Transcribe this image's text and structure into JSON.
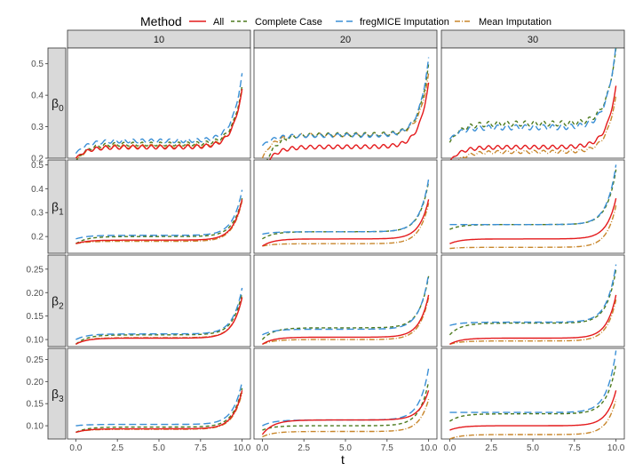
{
  "legend": {
    "title": "Method",
    "items": [
      {
        "label": "All",
        "color": "#e41a1c",
        "dash": "solid"
      },
      {
        "label": "Complete Case",
        "color": "#4d7a1e",
        "dash": "dashed"
      },
      {
        "label": "fregMICE Imputation",
        "color": "#3a8fd6",
        "dash": "longdash"
      },
      {
        "label": "Mean Imputation",
        "color": "#c8862b",
        "dash": "dotdash"
      }
    ]
  },
  "chart_data": {
    "type": "line",
    "xlabel": "t",
    "ylabel": "",
    "x_ticks": [
      0.0,
      2.5,
      5.0,
      7.5,
      10.0
    ],
    "x_tick_labels": [
      "0.0",
      "2.5",
      "5.0",
      "7.5",
      "10.0"
    ],
    "xlim": [
      -0.5,
      10.5
    ],
    "columns": [
      "10",
      "20",
      "30"
    ],
    "rows": [
      {
        "label": "β0",
        "sym": "β",
        "sub": "0",
        "ylim": [
          0.2,
          0.55
        ],
        "ticks": [
          0.2,
          0.3,
          0.4,
          0.5
        ],
        "tick_labels": [
          "0.2",
          "0.3",
          "0.4",
          "0.5"
        ]
      },
      {
        "label": "β1",
        "sym": "β",
        "sub": "1",
        "ylim": [
          0.13,
          0.52
        ],
        "ticks": [
          0.2,
          0.3,
          0.4,
          0.5
        ],
        "tick_labels": [
          "0.2",
          "0.3",
          "0.4",
          "0.5"
        ]
      },
      {
        "label": "β2",
        "sym": "β",
        "sub": "2",
        "ylim": [
          0.085,
          0.28
        ],
        "ticks": [
          0.1,
          0.15,
          0.2,
          0.25
        ],
        "tick_labels": [
          "0.10",
          "0.15",
          "0.20",
          "0.25"
        ]
      },
      {
        "label": "β3",
        "sym": "β",
        "sub": "3",
        "ylim": [
          0.07,
          0.275
        ],
        "ticks": [
          0.1,
          0.15,
          0.2,
          0.25
        ],
        "tick_labels": [
          "0.10",
          "0.15",
          "0.20",
          "0.25"
        ]
      }
    ],
    "panels": [
      [
        {
          "All": [
            0.235,
            0.2,
            0.42,
            0.006
          ],
          "Complete Case": [
            0.245,
            0.19,
            0.43,
            0.006
          ],
          "fregMICE Imputation": [
            0.255,
            0.215,
            0.47,
            0.006
          ],
          "Mean Imputation": [
            0.238,
            0.19,
            0.42,
            0.006
          ]
        },
        {
          "All": [
            0.236,
            0.16,
            0.44,
            0.006
          ],
          "Complete Case": [
            0.275,
            0.15,
            0.5,
            0.006
          ],
          "fregMICE Imputation": [
            0.272,
            0.24,
            0.52,
            0.006
          ],
          "Mean Imputation": [
            0.274,
            0.2,
            0.47,
            0.006
          ]
        },
        {
          "All": [
            0.235,
            0.19,
            0.43,
            0.006
          ],
          "Complete Case": [
            0.31,
            0.25,
            0.55,
            0.008
          ],
          "fregMICE Imputation": [
            0.298,
            0.26,
            0.56,
            0.008
          ],
          "Mean Imputation": [
            0.22,
            0.16,
            0.4,
            0.005
          ]
        }
      ],
      [
        {
          "All": [
            0.185,
            0.17,
            0.355,
            0
          ],
          "Complete Case": [
            0.2,
            0.17,
            0.36,
            0
          ],
          "fregMICE Imputation": [
            0.205,
            0.19,
            0.395,
            0
          ],
          "Mean Imputation": [
            0.18,
            0.17,
            0.35,
            0
          ]
        },
        {
          "All": [
            0.19,
            0.16,
            0.355,
            0
          ],
          "Complete Case": [
            0.22,
            0.19,
            0.43,
            0
          ],
          "fregMICE Imputation": [
            0.22,
            0.21,
            0.44,
            0
          ],
          "Mean Imputation": [
            0.17,
            0.16,
            0.34,
            0
          ]
        },
        {
          "All": [
            0.19,
            0.17,
            0.36,
            0
          ],
          "Complete Case": [
            0.25,
            0.23,
            0.48,
            0
          ],
          "fregMICE Imputation": [
            0.25,
            0.25,
            0.5,
            0
          ],
          "Mean Imputation": [
            0.155,
            0.15,
            0.33,
            0
          ]
        }
      ],
      [
        {
          "All": [
            0.103,
            0.09,
            0.19,
            0
          ],
          "Complete Case": [
            0.11,
            0.09,
            0.2,
            0
          ],
          "fregMICE Imputation": [
            0.112,
            0.1,
            0.21,
            0
          ],
          "Mean Imputation": [
            0.104,
            0.09,
            0.19,
            0
          ]
        },
        {
          "All": [
            0.105,
            0.09,
            0.195,
            0
          ],
          "Complete Case": [
            0.125,
            0.1,
            0.235,
            0
          ],
          "fregMICE Imputation": [
            0.122,
            0.11,
            0.24,
            0
          ],
          "Mean Imputation": [
            0.1,
            0.09,
            0.19,
            0
          ]
        },
        {
          "All": [
            0.103,
            0.09,
            0.195,
            0
          ],
          "Complete Case": [
            0.135,
            0.11,
            0.25,
            0
          ],
          "fregMICE Imputation": [
            0.137,
            0.13,
            0.26,
            0
          ],
          "Mean Imputation": [
            0.097,
            0.09,
            0.185,
            0
          ]
        }
      ],
      [
        {
          "All": [
            0.093,
            0.085,
            0.18,
            0
          ],
          "Complete Case": [
            0.097,
            0.085,
            0.185,
            0
          ],
          "fregMICE Imputation": [
            0.103,
            0.1,
            0.2,
            0
          ],
          "Mean Imputation": [
            0.092,
            0.085,
            0.175,
            0
          ]
        },
        {
          "All": [
            0.113,
            0.08,
            0.18,
            0
          ],
          "Complete Case": [
            0.1,
            0.09,
            0.2,
            0
          ],
          "fregMICE Imputation": [
            0.113,
            0.1,
            0.23,
            0
          ],
          "Mean Imputation": [
            0.087,
            0.075,
            0.16,
            0
          ]
        },
        {
          "All": [
            0.1,
            0.09,
            0.18,
            0
          ],
          "Complete Case": [
            0.127,
            0.11,
            0.24,
            0
          ],
          "fregMICE Imputation": [
            0.13,
            0.13,
            0.27,
            0
          ],
          "Mean Imputation": [
            0.08,
            0.07,
            0.16,
            0
          ]
        }
      ]
    ]
  }
}
